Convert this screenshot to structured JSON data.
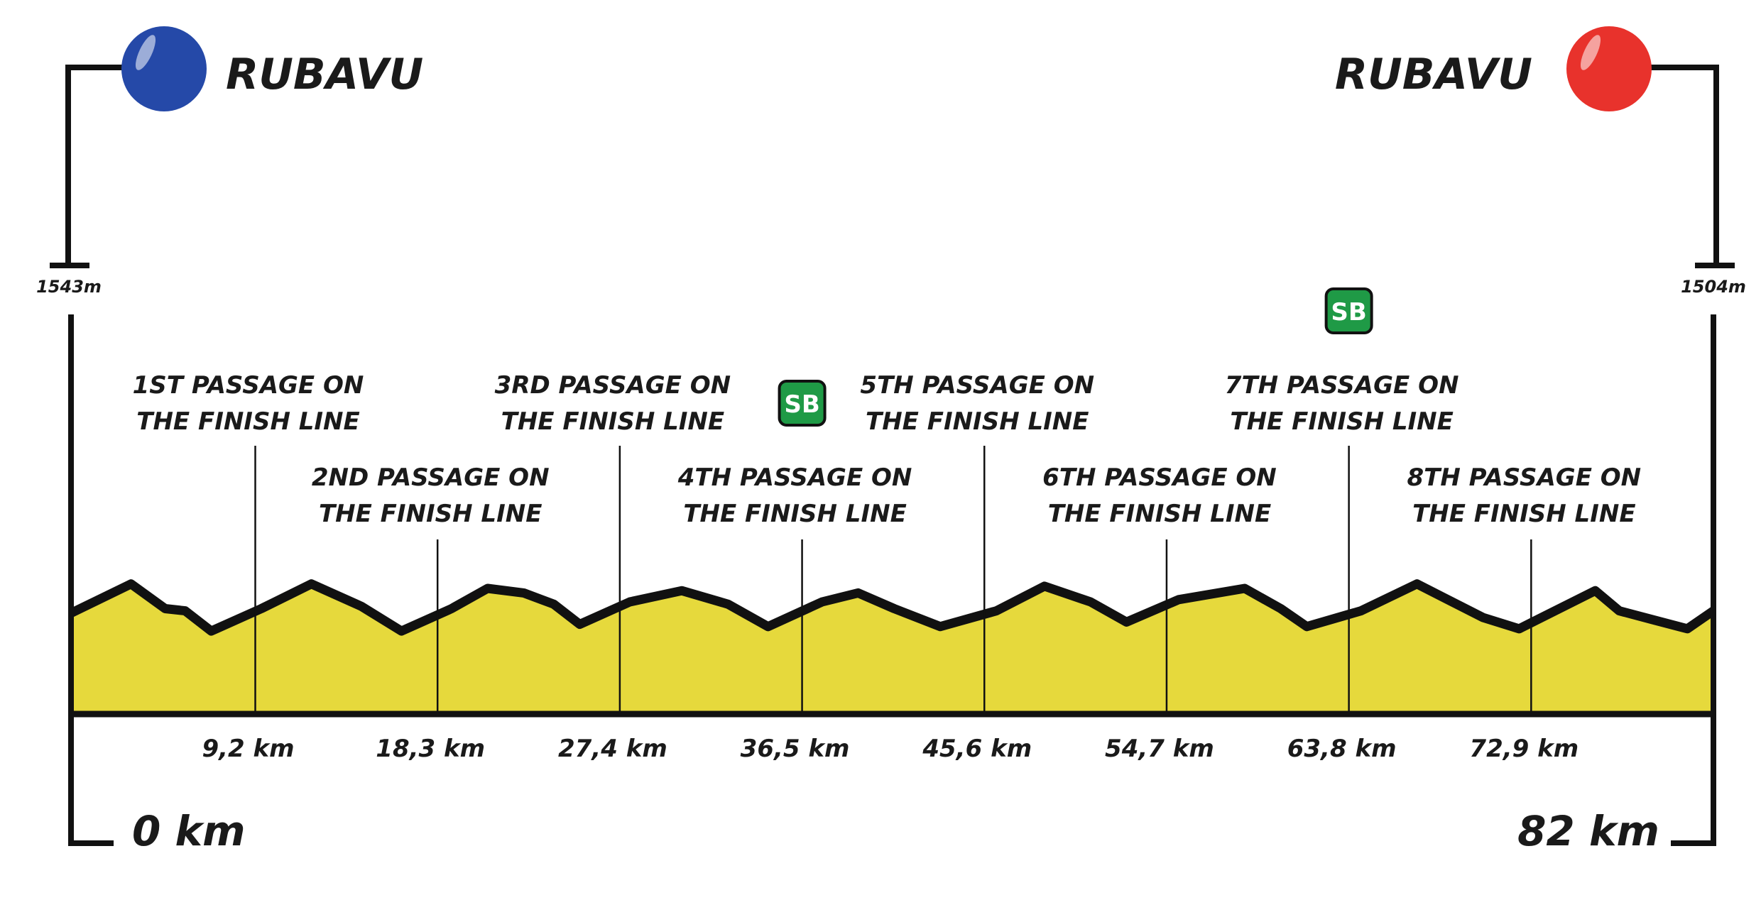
{
  "colors": {
    "start_marker": "#2549a8",
    "finish_marker": "#e8322c",
    "profile_fill": "#e6d93c",
    "profile_stroke": "#111111",
    "sprint_badge": "#1f9a46"
  },
  "start": {
    "name": "RUBAVU",
    "altitude": "1543m",
    "distance_label": "0 km"
  },
  "finish": {
    "name": "RUBAVU",
    "altitude": "1504m",
    "distance_label": "82 km"
  },
  "sprint_badge_text": "SB",
  "chart_data": {
    "type": "area",
    "title": "",
    "xlabel": "",
    "ylabel": "",
    "xlim": [
      0,
      82
    ],
    "profile": [
      [
        0,
        0.45
      ],
      [
        3,
        0.58
      ],
      [
        4.7,
        0.47
      ],
      [
        5.7,
        0.46
      ],
      [
        7,
        0.37
      ],
      [
        9.5,
        0.47
      ],
      [
        12,
        0.58
      ],
      [
        14.5,
        0.48
      ],
      [
        16.5,
        0.37
      ],
      [
        19,
        0.47
      ],
      [
        20.8,
        0.56
      ],
      [
        22.6,
        0.54
      ],
      [
        24.1,
        0.49
      ],
      [
        25.4,
        0.4
      ],
      [
        27.9,
        0.5
      ],
      [
        30.5,
        0.55
      ],
      [
        32.8,
        0.49
      ],
      [
        34.8,
        0.39
      ],
      [
        37.5,
        0.5
      ],
      [
        39.3,
        0.54
      ],
      [
        41.1,
        0.47
      ],
      [
        43.4,
        0.39
      ],
      [
        46.2,
        0.46
      ],
      [
        48.6,
        0.57
      ],
      [
        50.9,
        0.5
      ],
      [
        52.7,
        0.41
      ],
      [
        55.3,
        0.51
      ],
      [
        58.6,
        0.56
      ],
      [
        60.4,
        0.47
      ],
      [
        61.7,
        0.39
      ],
      [
        64.4,
        0.46
      ],
      [
        67.2,
        0.58
      ],
      [
        70.5,
        0.43
      ],
      [
        72.3,
        0.38
      ],
      [
        76.1,
        0.55
      ],
      [
        77.3,
        0.46
      ],
      [
        79,
        0.42
      ],
      [
        80.7,
        0.38
      ],
      [
        82,
        0.46
      ]
    ],
    "passages": [
      {
        "km": 9.2,
        "km_label": "9,2 km",
        "line1": "1ST PASSAGE ON",
        "line2": "THE FINISH LINE",
        "tier": "high",
        "sprint": false
      },
      {
        "km": 18.3,
        "km_label": "18,3 km",
        "line1": "2ND PASSAGE ON",
        "line2": "THE FINISH LINE",
        "tier": "low",
        "sprint": false
      },
      {
        "km": 27.4,
        "km_label": "27,4 km",
        "line1": "3RD PASSAGE ON",
        "line2": "THE FINISH LINE",
        "tier": "high",
        "sprint": false
      },
      {
        "km": 36.5,
        "km_label": "36,5 km",
        "line1": "4TH PASSAGE ON",
        "line2": "THE FINISH LINE",
        "tier": "low",
        "sprint": true
      },
      {
        "km": 45.6,
        "km_label": "45,6 km",
        "line1": "5TH PASSAGE ON",
        "line2": "THE FINISH LINE",
        "tier": "high",
        "sprint": false
      },
      {
        "km": 54.7,
        "km_label": "54,7 km",
        "line1": "6TH PASSAGE ON",
        "line2": "THE FINISH LINE",
        "tier": "low",
        "sprint": false
      },
      {
        "km": 63.8,
        "km_label": "63,8 km",
        "line1": "7TH PASSAGE ON",
        "line2": "THE FINISH LINE",
        "tier": "high",
        "sprint": true
      },
      {
        "km": 72.9,
        "km_label": "72,9 km",
        "line1": "8TH PASSAGE ON",
        "line2": "THE FINISH LINE",
        "tier": "low",
        "sprint": false
      }
    ]
  }
}
